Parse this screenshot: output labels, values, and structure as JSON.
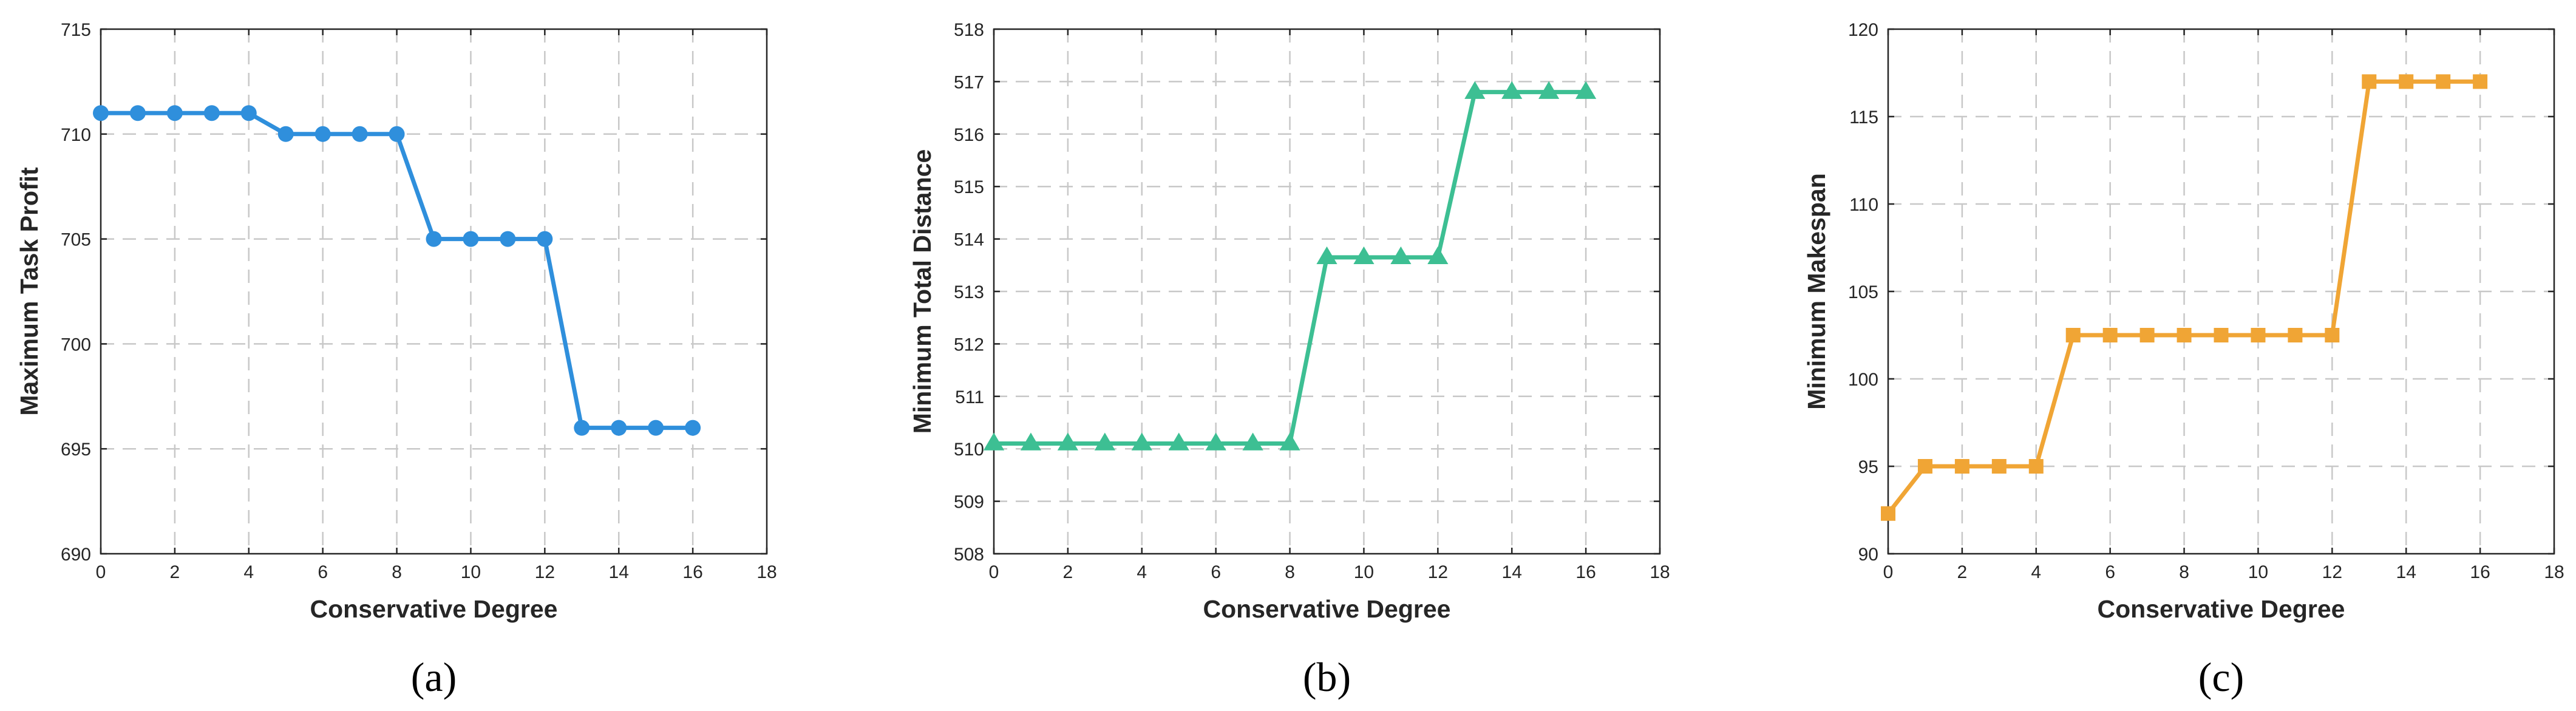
{
  "chart_data": [
    {
      "type": "line",
      "panel_label": "(a)",
      "xlabel": "Conservative Degree",
      "ylabel": "Maximum Task Profit",
      "xlim": [
        0,
        18
      ],
      "ylim": [
        690,
        715
      ],
      "xticks": [
        0,
        2,
        4,
        6,
        8,
        10,
        12,
        14,
        16,
        18
      ],
      "yticks": [
        690,
        695,
        700,
        705,
        710,
        715
      ],
      "grid": true,
      "color": "#2f8fdc",
      "marker": "circle",
      "x": [
        0,
        1,
        2,
        3,
        4,
        5,
        6,
        7,
        8,
        9,
        10,
        11,
        12,
        13,
        14,
        15,
        16
      ],
      "y": [
        711,
        711,
        711,
        711,
        711,
        710,
        710,
        710,
        710,
        705,
        705,
        705,
        705,
        696,
        696,
        696,
        696
      ]
    },
    {
      "type": "line",
      "panel_label": "(b)",
      "xlabel": "Conservative Degree",
      "ylabel": "Minimum Total Distance",
      "xlim": [
        0,
        18
      ],
      "ylim": [
        508,
        518
      ],
      "xticks": [
        0,
        2,
        4,
        6,
        8,
        10,
        12,
        14,
        16,
        18
      ],
      "yticks": [
        508,
        509,
        510,
        511,
        512,
        513,
        514,
        515,
        516,
        517,
        518
      ],
      "grid": true,
      "color": "#3dbf93",
      "marker": "triangle",
      "x": [
        0,
        1,
        2,
        3,
        4,
        5,
        6,
        7,
        8,
        9,
        10,
        11,
        12,
        13,
        14,
        15,
        16
      ],
      "y": [
        510.1,
        510.1,
        510.1,
        510.1,
        510.1,
        510.1,
        510.1,
        510.1,
        510.1,
        513.65,
        513.65,
        513.65,
        513.65,
        516.8,
        516.8,
        516.8,
        516.8
      ]
    },
    {
      "type": "line",
      "panel_label": "(c)",
      "xlabel": "Conservative Degree",
      "ylabel": "Minimum Makespan",
      "xlim": [
        0,
        18
      ],
      "ylim": [
        90,
        120
      ],
      "xticks": [
        0,
        2,
        4,
        6,
        8,
        10,
        12,
        14,
        16,
        18
      ],
      "yticks": [
        90,
        95,
        100,
        105,
        110,
        115,
        120
      ],
      "grid": true,
      "color": "#f0a535",
      "marker": "square",
      "x": [
        0,
        1,
        2,
        3,
        4,
        5,
        6,
        7,
        8,
        9,
        10,
        11,
        12,
        13,
        14,
        15,
        16
      ],
      "y": [
        92.3,
        95,
        95,
        95,
        95,
        102.5,
        102.5,
        102.5,
        102.5,
        102.5,
        102.5,
        102.5,
        102.5,
        117,
        117,
        117,
        117
      ]
    }
  ]
}
